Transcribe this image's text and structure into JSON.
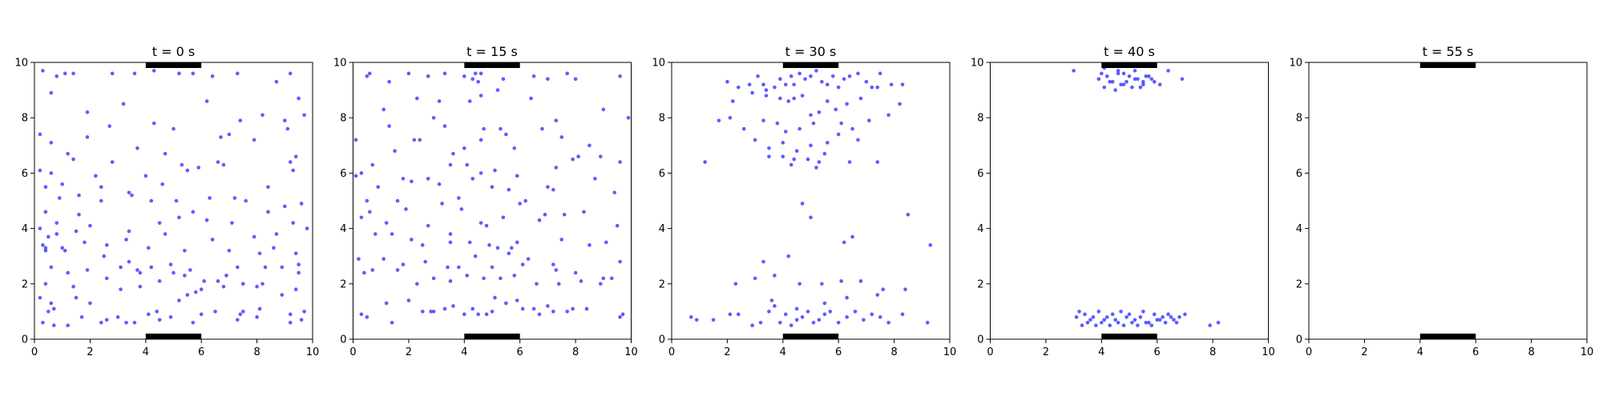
{
  "figure": {
    "panel_titles": [
      "t = 0 s",
      "t = 15 s",
      "t = 30 s",
      "t = 40 s",
      "t = 55 s"
    ]
  },
  "colors": {
    "points": "#3f3fff",
    "exits": "#000000",
    "axes": "#000000"
  },
  "chart_data": [
    {
      "type": "scatter",
      "title": "t = 0 s",
      "xlim": [
        0,
        10
      ],
      "ylim": [
        0,
        10
      ],
      "xticks": [
        0,
        2,
        4,
        6,
        8,
        10
      ],
      "yticks": [
        0,
        2,
        4,
        6,
        8,
        10
      ],
      "exits": [
        {
          "x_range": [
            4,
            6
          ],
          "y": 10
        },
        {
          "x_range": [
            4,
            6
          ],
          "y": 0
        }
      ],
      "grid": false,
      "x": [
        0.3,
        0.8,
        1.1,
        1.4,
        1.9,
        2.8,
        3.6,
        4.3,
        5.2,
        5.7,
        6.4,
        7.3,
        8.7,
        9.2,
        9.5,
        0.6,
        1.9,
        3.2,
        6.2,
        7.0,
        8.2,
        9.0,
        9.7,
        0.2,
        0.6,
        1.2,
        2.7,
        4.3,
        5.0,
        6.7,
        7.4,
        9.1,
        9.4,
        0.6,
        2.4,
        3.7,
        4.7,
        5.5,
        6.8,
        7.9,
        9.3,
        0.2,
        0.4,
        0.9,
        1.6,
        2.4,
        3.5,
        4.2,
        5.1,
        5.7,
        6.3,
        7.2,
        8.4,
        9.0,
        9.6,
        0.2,
        0.5,
        0.8,
        1.5,
        2.0,
        3.4,
        4.5,
        5.2,
        6.2,
        7.1,
        8.1,
        8.6,
        9.3,
        9.8,
        0.3,
        0.4,
        0.8,
        1.0,
        1.8,
        2.6,
        3.3,
        4.1,
        4.7,
        5.4,
        6.4,
        7.0,
        7.9,
        8.7,
        9.4,
        0.4,
        0.6,
        1.2,
        1.9,
        2.5,
        3.1,
        3.7,
        4.5,
        5.0,
        5.6,
        6.6,
        7.3,
        8.2,
        8.9,
        9.5,
        0.5,
        0.7,
        1.5,
        2.0,
        3.1,
        3.8,
        4.4,
        5.2,
        5.8,
        6.5,
        7.5,
        8.1,
        9.2,
        9.7,
        0.3,
        0.7,
        1.2,
        1.7,
        2.6,
        3.3,
        4.1,
        4.9,
        5.7,
        6.0,
        7.3,
        8.0,
        9.2,
        9.6,
        0.4,
        1.0,
        1.4,
        2.2,
        2.8,
        3.4,
        4.0,
        4.6,
        5.3,
        5.9,
        6.6,
        7.6,
        8.4,
        9.2,
        0.4,
        1.1,
        1.6,
        2.6,
        3.4,
        3.8,
        4.2,
        4.9,
        5.4,
        6.1,
        6.9,
        7.5,
        8.3,
        9.5,
        0.2,
        0.6,
        1.4,
        2.4,
        3.0,
        3.6,
        4.5,
        5.5,
        6.0,
        6.8,
        7.4,
        8.0,
        8.9,
        9.4
      ],
      "y": [
        9.7,
        9.5,
        9.6,
        9.6,
        8.2,
        9.6,
        9.6,
        9.7,
        9.6,
        9.6,
        9.5,
        9.6,
        9.3,
        9.6,
        8.7,
        8.9,
        7.3,
        8.5,
        8.6,
        7.4,
        8.1,
        7.9,
        8.1,
        7.4,
        7.1,
        6.7,
        7.7,
        7.8,
        7.6,
        7.3,
        7.9,
        7.6,
        6.6,
        6.0,
        5.5,
        6.9,
        6.7,
        6.1,
        6.3,
        7.2,
        6.1,
        6.1,
        5.5,
        5.1,
        5.2,
        5.0,
        5.2,
        5.0,
        5.0,
        4.6,
        5.1,
        5.1,
        4.6,
        4.8,
        4.9,
        4.0,
        3.7,
        4.2,
        3.9,
        4.1,
        3.9,
        4.2,
        4.4,
        4.3,
        4.2,
        3.1,
        3.3,
        4.2,
        4.0,
        3.4,
        3.2,
        3.8,
        3.3,
        3.5,
        3.4,
        3.6,
        3.3,
        3.8,
        3.2,
        3.6,
        3.2,
        3.7,
        3.8,
        3.1,
        2.0,
        2.6,
        2.4,
        2.5,
        3.0,
        2.6,
        2.5,
        2.1,
        2.4,
        2.5,
        2.1,
        2.6,
        2.0,
        2.6,
        2.4,
        1.0,
        1.1,
        1.5,
        1.3,
        1.8,
        1.9,
        1.0,
        1.4,
        1.7,
        1.0,
        1.0,
        1.1,
        0.9,
        1.0,
        0.6,
        0.5,
        0.5,
        0.8,
        0.7,
        0.6,
        0.9,
        0.8,
        0.6,
        0.9,
        0.7,
        0.8,
        0.6,
        0.7,
        4.6,
        5.6,
        6.5,
        5.9,
        6.4,
        5.3,
        5.9,
        5.6,
        6.3,
        6.2,
        6.4,
        5.0,
        5.5,
        6.4,
        3.3,
        3.2,
        4.5,
        2.2,
        2.8,
        2.4,
        2.6,
        2.7,
        2.3,
        2.1,
        2.3,
        2.0,
        2.6,
        2.7,
        1.5,
        1.3,
        1.9,
        0.6,
        0.8,
        0.6,
        0.7,
        1.6,
        1.8,
        1.9,
        0.9,
        1.9,
        1.6,
        1.8
      ]
    },
    {
      "type": "scatter",
      "title": "t = 15 s",
      "xlim": [
        0,
        10
      ],
      "ylim": [
        0,
        10
      ],
      "xticks": [
        0,
        2,
        4,
        6,
        8,
        10
      ],
      "yticks": [
        0,
        2,
        4,
        6,
        8,
        10
      ],
      "exits": [
        {
          "x_range": [
            4,
            6
          ],
          "y": 10
        },
        {
          "x_range": [
            4,
            6
          ],
          "y": 0
        }
      ],
      "grid": false,
      "x": [
        0.5,
        0.6,
        1.3,
        2.0,
        2.7,
        3.3,
        4.0,
        4.3,
        4.4,
        4.5,
        4.6,
        5.4,
        6.5,
        7.0,
        7.7,
        8.0,
        9.6,
        0.1,
        1.1,
        2.3,
        3.1,
        4.2,
        4.6,
        5.2,
        6.4,
        7.3,
        9.0,
        0.3,
        1.3,
        2.2,
        2.9,
        3.3,
        4.7,
        5.3,
        6.8,
        7.5,
        8.5,
        9.9,
        0.7,
        1.5,
        2.4,
        3.6,
        4.0,
        4.6,
        5.5,
        5.8,
        7.3,
        8.1,
        9.6,
        0.1,
        0.9,
        1.8,
        2.7,
        3.5,
        4.1,
        4.6,
        5.1,
        5.9,
        7.0,
        7.9,
        8.9,
        0.5,
        1.6,
        2.1,
        3.1,
        3.8,
        4.3,
        5.0,
        5.6,
        6.2,
        7.2,
        8.7,
        9.4,
        0.3,
        0.6,
        1.2,
        1.9,
        2.7,
        3.2,
        3.9,
        4.6,
        5.4,
        6.0,
        6.9,
        7.6,
        8.3,
        9.5,
        0.8,
        1.4,
        2.1,
        3.5,
        4.2,
        4.8,
        5.2,
        5.9,
        6.7,
        7.5,
        8.5,
        9.1,
        0.2,
        0.7,
        1.8,
        2.6,
        3.4,
        3.8,
        4.4,
        5.0,
        5.6,
        6.3,
        7.2,
        8.0,
        9.0,
        9.6,
        0.4,
        1.1,
        1.6,
        2.3,
        2.9,
        3.5,
        4.1,
        4.7,
        5.3,
        5.8,
        6.6,
        7.4,
        8.2,
        9.3,
        0.3,
        1.4,
        2.5,
        2.9,
        3.6,
        4.3,
        4.8,
        5.1,
        5.9,
        6.5,
        7.2,
        7.9,
        9.7,
        0.5,
        1.2,
        2.0,
        2.8,
        3.3,
        4.0,
        4.5,
        5.0,
        5.5,
        6.1,
        6.7,
        7.0,
        7.7,
        8.4,
        9.6,
        2.5,
        3.5,
        4.9,
        5.7,
        6.1,
        7.3,
        8.9
      ],
      "y": [
        9.5,
        9.6,
        9.3,
        9.6,
        9.5,
        9.6,
        9.5,
        9.4,
        9.6,
        9.3,
        9.6,
        9.4,
        9.5,
        9.4,
        9.6,
        9.4,
        9.5,
        7.2,
        8.3,
        8.7,
        8.6,
        8.6,
        8.8,
        9.0,
        8.7,
        7.9,
        8.3,
        6.0,
        7.7,
        7.2,
        8.0,
        7.7,
        7.6,
        7.6,
        7.6,
        7.3,
        7.0,
        8.0,
        6.3,
        6.8,
        7.2,
        6.7,
        6.9,
        7.2,
        7.4,
        6.9,
        6.2,
        6.6,
        6.4,
        5.9,
        5.5,
        5.8,
        5.8,
        6.3,
        6.3,
        6.0,
        6.1,
        5.9,
        5.5,
        6.5,
        6.6,
        5.0,
        5.0,
        5.7,
        5.6,
        5.1,
        5.8,
        5.5,
        5.4,
        5.0,
        5.4,
        5.8,
        5.3,
        4.4,
        4.6,
        4.2,
        4.7,
        4.1,
        4.9,
        4.7,
        4.2,
        4.4,
        4.9,
        4.5,
        4.5,
        4.6,
        4.1,
        3.8,
        3.8,
        3.6,
        3.8,
        3.5,
        4.1,
        3.3,
        3.5,
        4.3,
        3.6,
        3.4,
        3.5,
        2.9,
        2.5,
        2.7,
        2.8,
        2.6,
        2.6,
        3.0,
        2.6,
        3.1,
        2.9,
        2.7,
        2.4,
        2.2,
        2.8,
        2.4,
        2.9,
        2.5,
        2.0,
        2.2,
        2.1,
        2.3,
        2.2,
        2.2,
        2.3,
        2.0,
        2.0,
        2.1,
        2.2,
        0.9,
        0.6,
        1.0,
        1.0,
        1.2,
        1.1,
        0.9,
        1.5,
        1.4,
        1.1,
        1.0,
        1.1,
        0.9,
        0.8,
        1.3,
        1.4,
        1.0,
        1.1,
        0.9,
        0.9,
        1.0,
        1.3,
        1.1,
        0.9,
        1.2,
        1.0,
        1.1,
        0.8,
        3.4,
        3.5,
        3.4,
        3.3,
        2.7,
        2.5,
        2.0
      ]
    },
    {
      "type": "scatter",
      "title": "t = 30 s",
      "xlim": [
        0,
        10
      ],
      "ylim": [
        0,
        10
      ],
      "xticks": [
        0,
        2,
        4,
        6,
        8,
        10
      ],
      "yticks": [
        0,
        2,
        4,
        6,
        8,
        10
      ],
      "exits": [
        {
          "x_range": [
            4,
            6
          ],
          "y": 10
        },
        {
          "x_range": [
            4,
            6
          ],
          "y": 0
        }
      ],
      "grid": false,
      "x": [
        2.0,
        2.2,
        2.4,
        2.8,
        3.1,
        3.3,
        3.4,
        3.7,
        3.9,
        4.1,
        4.3,
        4.4,
        4.6,
        4.8,
        5.0,
        5.2,
        5.4,
        5.6,
        5.8,
        6.0,
        6.2,
        6.4,
        6.7,
        7.0,
        7.2,
        7.5,
        7.9,
        8.2,
        2.1,
        2.9,
        3.4,
        3.9,
        4.2,
        4.4,
        4.7,
        5.0,
        5.3,
        5.6,
        5.9,
        6.3,
        6.8,
        7.4,
        8.3,
        1.7,
        2.6,
        3.3,
        3.8,
        4.1,
        4.6,
        5.1,
        5.6,
        6.1,
        6.5,
        7.1,
        7.8,
        3.0,
        3.5,
        4.0,
        4.5,
        5.0,
        5.5,
        6.0,
        6.7,
        1.2,
        3.5,
        4.4,
        5.3,
        6.4,
        7.4,
        4.0,
        4.3,
        4.9,
        5.2,
        0.7,
        0.9,
        1.5,
        2.1,
        2.4,
        2.9,
        3.2,
        3.5,
        3.7,
        3.9,
        4.1,
        4.3,
        4.5,
        4.7,
        4.9,
        5.1,
        5.3,
        5.5,
        5.7,
        6.0,
        6.3,
        6.6,
        6.9,
        7.2,
        7.5,
        7.8,
        8.3,
        9.2,
        2.3,
        3.0,
        3.7,
        4.6,
        5.4,
        6.1,
        6.8,
        7.6,
        8.4,
        3.3,
        4.2,
        4.7,
        5.0,
        6.2,
        6.5,
        8.5,
        9.3,
        3.6,
        4.5,
        5.5,
        6.3,
        7.4
      ],
      "y": [
        9.3,
        8.6,
        9.1,
        9.2,
        9.5,
        9.2,
        9.0,
        9.1,
        9.4,
        9.2,
        9.5,
        9.2,
        9.6,
        9.4,
        9.5,
        9.7,
        9.3,
        9.2,
        9.5,
        9.1,
        9.4,
        9.5,
        9.6,
        9.3,
        9.1,
        9.6,
        9.2,
        8.5,
        8.0,
        8.9,
        8.8,
        8.7,
        8.6,
        8.7,
        8.8,
        8.1,
        8.2,
        8.6,
        8.3,
        8.5,
        8.7,
        9.1,
        9.2,
        7.9,
        7.6,
        7.9,
        7.8,
        7.5,
        7.6,
        7.8,
        7.1,
        7.8,
        7.6,
        7.9,
        8.1,
        7.2,
        6.9,
        7.1,
        6.8,
        7.0,
        6.7,
        7.4,
        7.2,
        6.4,
        6.6,
        6.5,
        6.4,
        6.4,
        6.4,
        6.6,
        6.3,
        6.5,
        6.2,
        0.8,
        0.7,
        0.7,
        0.9,
        0.9,
        0.5,
        0.6,
        1.0,
        1.2,
        0.6,
        0.9,
        0.5,
        0.7,
        0.8,
        1.0,
        0.6,
        0.7,
        0.9,
        1.0,
        0.6,
        0.8,
        1.0,
        0.7,
        0.9,
        0.8,
        0.6,
        0.9,
        0.6,
        2.0,
        2.2,
        2.3,
        2.0,
        2.0,
        2.1,
        2.1,
        1.8,
        1.8,
        2.8,
        3.0,
        4.9,
        4.4,
        3.5,
        3.7,
        4.5,
        3.4,
        1.4,
        1.1,
        1.3,
        1.5,
        1.6
      ]
    },
    {
      "type": "scatter",
      "title": "t = 40 s",
      "xlim": [
        0,
        10
      ],
      "ylim": [
        0,
        10
      ],
      "xticks": [
        0,
        2,
        4,
        6,
        8,
        10
      ],
      "yticks": [
        0,
        2,
        4,
        6,
        8,
        10
      ],
      "exits": [
        {
          "x_range": [
            4,
            6
          ],
          "y": 10
        },
        {
          "x_range": [
            4,
            6
          ],
          "y": 0
        }
      ],
      "grid": false,
      "x": [
        3.9,
        4.1,
        4.3,
        4.5,
        4.7,
        4.9,
        5.1,
        5.3,
        5.5,
        5.7,
        5.9,
        6.1,
        4.0,
        4.2,
        4.4,
        4.6,
        4.8,
        5.0,
        5.2,
        5.4,
        5.6,
        5.8,
        3.0,
        4.6,
        5.2,
        6.4,
        6.9,
        4.1,
        4.8,
        5.5,
        3.1,
        3.2,
        3.4,
        3.6,
        3.7,
        3.9,
        4.0,
        4.2,
        4.4,
        4.5,
        4.7,
        4.9,
        5.0,
        5.2,
        5.4,
        5.5,
        5.7,
        5.9,
        6.0,
        6.2,
        6.4,
        6.6,
        6.8,
        7.0,
        3.3,
        3.5,
        3.8,
        4.1,
        4.3,
        4.6,
        4.8,
        5.1,
        5.3,
        5.6,
        5.8,
        6.1,
        6.3,
        6.5,
        6.7,
        7.9,
        8.2
      ],
      "y": [
        9.4,
        9.1,
        9.3,
        9.0,
        9.2,
        9.3,
        9.1,
        9.4,
        9.2,
        9.5,
        9.3,
        9.2,
        9.6,
        9.5,
        9.3,
        9.6,
        9.2,
        9.5,
        9.4,
        9.1,
        9.5,
        9.4,
        9.7,
        9.7,
        9.7,
        9.7,
        9.4,
        9.8,
        9.6,
        9.3,
        0.8,
        1.0,
        0.9,
        0.7,
        0.8,
        1.0,
        0.6,
        0.8,
        0.9,
        0.7,
        1.0,
        0.8,
        0.9,
        0.7,
        0.8,
        1.0,
        0.6,
        0.9,
        0.7,
        0.8,
        0.9,
        0.7,
        0.8,
        0.9,
        0.5,
        0.6,
        0.5,
        0.7,
        0.5,
        0.6,
        0.5,
        0.6,
        0.5,
        0.6,
        0.5,
        0.7,
        0.6,
        0.8,
        0.6,
        0.5,
        0.6
      ]
    },
    {
      "type": "scatter",
      "title": "t = 55 s",
      "xlim": [
        0,
        10
      ],
      "ylim": [
        0,
        10
      ],
      "xticks": [
        0,
        2,
        4,
        6,
        8,
        10
      ],
      "yticks": [
        0,
        2,
        4,
        6,
        8,
        10
      ],
      "exits": [
        {
          "x_range": [
            4,
            6
          ],
          "y": 10
        },
        {
          "x_range": [
            4,
            6
          ],
          "y": 0
        }
      ],
      "grid": false,
      "x": [],
      "y": []
    }
  ]
}
